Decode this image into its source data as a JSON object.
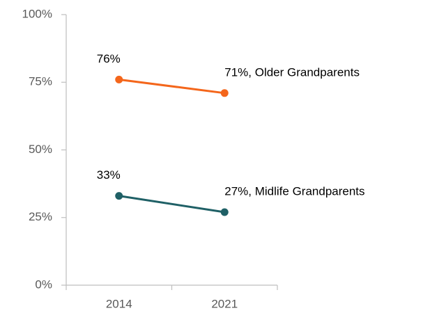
{
  "chart_data": {
    "type": "line",
    "categories": [
      "2014",
      "2021"
    ],
    "series": [
      {
        "color": "#f4661b",
        "values": [
          76,
          71
        ],
        "value_labels": [
          "76%",
          "71%, Older Grandparents"
        ]
      },
      {
        "color": "#1f6066",
        "values": [
          33,
          27
        ],
        "value_labels": [
          "33%",
          "27%, Midlife Grandparents"
        ]
      }
    ],
    "ylim": [
      0,
      100
    ],
    "yticks": [
      {
        "value": 0,
        "label": "0%"
      },
      {
        "value": 25,
        "label": "25%"
      },
      {
        "value": 50,
        "label": "50%"
      },
      {
        "value": 75,
        "label": "75%"
      },
      {
        "value": 100,
        "label": "100%"
      }
    ],
    "grid": false
  }
}
